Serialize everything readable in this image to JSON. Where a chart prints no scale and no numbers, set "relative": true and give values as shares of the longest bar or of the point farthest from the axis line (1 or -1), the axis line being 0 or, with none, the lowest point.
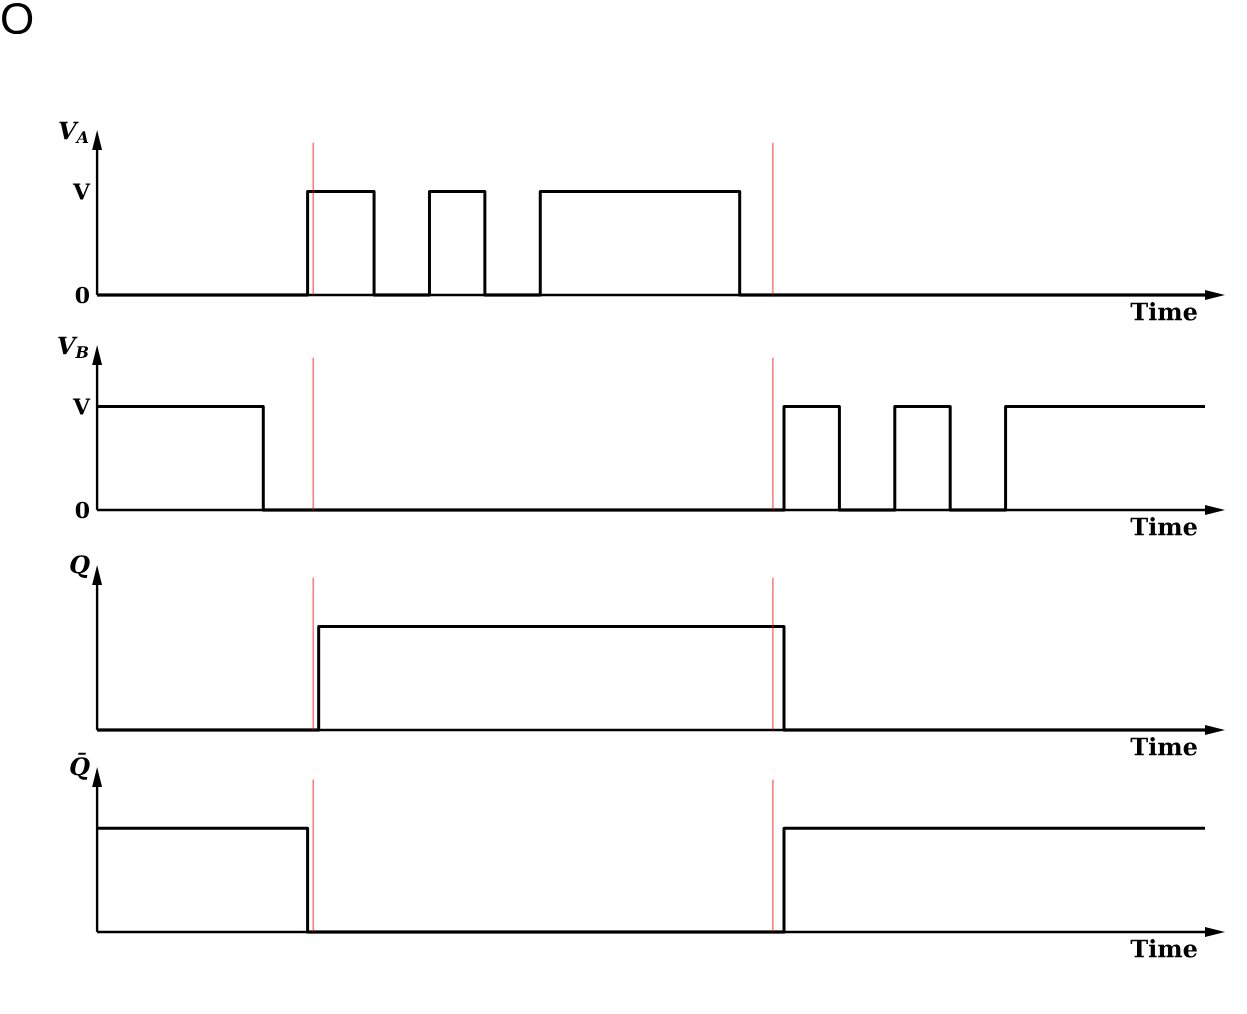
{
  "chart_data": [
    {
      "type": "step",
      "ylabel": "V$_{A}$",
      "xlabel": "Time",
      "relative": true,
      "annotations": [
        "V",
        "0",
        "O"
      ],
      "color": "#000000",
      "categories": [
        null,
        null,
        null,
        null,
        null,
        null,
        null,
        null,
        null,
        null,
        null,
        null,
        null,
        null,
        null,
        null,
        null,
        null,
        null,
        null,
        null,
        null,
        null,
        null,
        null,
        null,
        null,
        null,
        null,
        null,
        null,
        null,
        null,
        null,
        null,
        null,
        null,
        null,
        null,
        null,
        null,
        null,
        null,
        null,
        null,
        null,
        null,
        null,
        null,
        null,
        null,
        null,
        null,
        null,
        null,
        null,
        null,
        null,
        null,
        null,
        null,
        null,
        null,
        null,
        null,
        null,
        null,
        null,
        null,
        null,
        null,
        null,
        null,
        null,
        null,
        null,
        null,
        null,
        null,
        null,
        null,
        null,
        null,
        null,
        null,
        null,
        null,
        null,
        null,
        null,
        null,
        null,
        null,
        null,
        null,
        null,
        null,
        null,
        null,
        null,
        null
      ],
      "values": [
        0,
        0,
        0,
        0,
        0,
        0,
        0,
        0,
        0,
        0,
        0,
        0,
        0,
        0,
        0,
        0,
        0,
        0,
        0,
        1,
        1,
        1,
        1,
        1,
        1,
        0,
        0,
        0,
        0,
        0,
        1,
        1,
        1,
        1,
        1,
        0,
        0,
        0,
        0,
        0,
        1,
        1,
        1,
        1,
        1,
        1,
        1,
        1,
        1,
        1,
        1,
        1,
        1,
        1,
        1,
        1,
        1,
        1,
        0,
        0,
        0,
        0,
        0,
        0,
        0,
        0,
        0,
        0,
        0,
        0,
        0,
        0,
        0,
        0,
        0,
        0,
        0,
        0,
        0,
        0,
        0,
        0,
        0,
        0,
        0,
        0,
        0,
        0,
        0,
        0,
        0,
        0,
        0,
        0,
        0,
        0,
        0,
        0,
        0,
        0,
        0
      ]
    },
    {
      "type": "step",
      "ylabel": "V$_{B}$",
      "xlabel": "Time",
      "relative": true,
      "annotations": [
        "V",
        "0"
      ],
      "color": "#000000",
      "categories": [
        null,
        null,
        null,
        null,
        null,
        null,
        null,
        null,
        null,
        null,
        null,
        null,
        null,
        null,
        null,
        null,
        null,
        null,
        null,
        null,
        null,
        null,
        null,
        null,
        null,
        null,
        null,
        null,
        null,
        null,
        null,
        null,
        null,
        null,
        null,
        null,
        null,
        null,
        null,
        null,
        null,
        null,
        null,
        null,
        null,
        null,
        null,
        null,
        null,
        null,
        null,
        null,
        null,
        null,
        null,
        null,
        null,
        null,
        null,
        null,
        null,
        null,
        null,
        null,
        null,
        null,
        null,
        null,
        null,
        null,
        null,
        null,
        null,
        null,
        null,
        null,
        null,
        null,
        null,
        null,
        null,
        null,
        null,
        null,
        null,
        null,
        null,
        null,
        null,
        null,
        null,
        null,
        null,
        null,
        null,
        null,
        null,
        null,
        null,
        null,
        null
      ],
      "values": [
        1,
        1,
        1,
        1,
        1,
        1,
        1,
        1,
        1,
        1,
        1,
        1,
        1,
        1,
        1,
        0,
        0,
        0,
        0,
        0,
        0,
        0,
        0,
        0,
        0,
        0,
        0,
        0,
        0,
        0,
        0,
        0,
        0,
        0,
        0,
        0,
        0,
        0,
        0,
        0,
        0,
        0,
        0,
        0,
        0,
        0,
        0,
        0,
        0,
        0,
        0,
        0,
        0,
        0,
        0,
        0,
        0,
        0,
        0,
        0,
        0,
        0,
        1,
        1,
        1,
        1,
        1,
        0,
        0,
        0,
        0,
        0,
        1,
        1,
        1,
        1,
        1,
        0,
        0,
        0,
        0,
        0,
        1,
        1,
        1,
        1,
        1,
        1,
        1,
        1,
        1,
        1,
        1,
        1,
        1,
        1,
        1,
        1,
        1,
        1,
        1
      ]
    },
    {
      "type": "step",
      "ylabel": "Q",
      "xlabel": "Time",
      "relative": true,
      "color": "#000000",
      "categories": [
        null,
        null,
        null,
        null,
        null,
        null,
        null,
        null,
        null,
        null,
        null,
        null,
        null,
        null,
        null,
        null,
        null,
        null,
        null,
        null,
        null,
        null,
        null,
        null,
        null,
        null,
        null,
        null,
        null,
        null,
        null,
        null,
        null,
        null,
        null,
        null,
        null,
        null,
        null,
        null,
        null,
        null,
        null,
        null,
        null,
        null,
        null,
        null,
        null,
        null,
        null,
        null,
        null,
        null,
        null,
        null,
        null,
        null,
        null,
        null,
        null,
        null,
        null,
        null,
        null,
        null,
        null,
        null,
        null,
        null,
        null,
        null,
        null,
        null,
        null,
        null,
        null,
        null,
        null,
        null,
        null,
        null,
        null,
        null,
        null,
        null,
        null,
        null,
        null,
        null,
        null,
        null,
        null,
        null,
        null,
        null,
        null,
        null,
        null,
        null,
        null
      ],
      "values": [
        0,
        0,
        0,
        0,
        0,
        0,
        0,
        0,
        0,
        0,
        0,
        0,
        0,
        0,
        0,
        0,
        0,
        0,
        0,
        0,
        1,
        1,
        1,
        1,
        1,
        1,
        1,
        1,
        1,
        1,
        1,
        1,
        1,
        1,
        1,
        1,
        1,
        1,
        1,
        1,
        1,
        1,
        1,
        1,
        1,
        1,
        1,
        1,
        1,
        1,
        1,
        1,
        1,
        1,
        1,
        1,
        1,
        1,
        1,
        1,
        1,
        1,
        0,
        0,
        0,
        0,
        0,
        0,
        0,
        0,
        0,
        0,
        0,
        0,
        0,
        0,
        0,
        0,
        0,
        0,
        0,
        0,
        0,
        0,
        0,
        0,
        0,
        0,
        0,
        0,
        0,
        0,
        0,
        0,
        0,
        0,
        0,
        0,
        0,
        0,
        0
      ]
    },
    {
      "type": "step",
      "ylabel": "Q̄",
      "xlabel": "Time",
      "relative": true,
      "color": "#000000",
      "categories": [
        null,
        null,
        null,
        null,
        null,
        null,
        null,
        null,
        null,
        null,
        null,
        null,
        null,
        null,
        null,
        null,
        null,
        null,
        null,
        null,
        null,
        null,
        null,
        null,
        null,
        null,
        null,
        null,
        null,
        null,
        null,
        null,
        null,
        null,
        null,
        null,
        null,
        null,
        null,
        null,
        null,
        null,
        null,
        null,
        null,
        null,
        null,
        null,
        null,
        null,
        null,
        null,
        null,
        null,
        null,
        null,
        null,
        null,
        null,
        null,
        null,
        null,
        null,
        null,
        null,
        null,
        null,
        null,
        null,
        null,
        null,
        null,
        null,
        null,
        null,
        null,
        null,
        null,
        null,
        null,
        null,
        null,
        null,
        null,
        null,
        null,
        null,
        null,
        null,
        null,
        null,
        null,
        null,
        null,
        null,
        null,
        null,
        null,
        null,
        null,
        null
      ],
      "values": [
        1,
        1,
        1,
        1,
        1,
        1,
        1,
        1,
        1,
        1,
        1,
        1,
        1,
        1,
        1,
        1,
        1,
        1,
        1,
        0,
        0,
        0,
        0,
        0,
        0,
        0,
        0,
        0,
        0,
        0,
        0,
        0,
        0,
        0,
        0,
        0,
        0,
        0,
        0,
        0,
        0,
        0,
        0,
        0,
        0,
        0,
        0,
        0,
        0,
        0,
        0,
        0,
        0,
        0,
        0,
        0,
        0,
        0,
        0,
        0,
        0,
        0,
        1,
        1,
        1,
        1,
        1,
        1,
        1,
        1,
        1,
        1,
        1,
        1,
        1,
        1,
        1,
        1,
        1,
        1,
        1,
        1,
        1,
        1,
        1,
        1,
        1,
        1,
        1,
        1,
        1,
        1,
        1,
        1,
        1,
        1,
        1,
        1,
        1,
        1,
        1
      ]
    }
  ]
}
